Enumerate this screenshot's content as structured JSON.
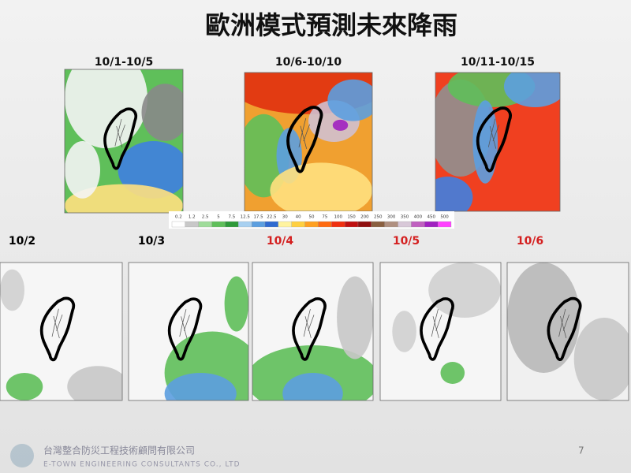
{
  "header": {
    "title": "歐洲模式預測未來降雨"
  },
  "periods": [
    {
      "label": "10/1-10/5"
    },
    {
      "label": "10/6-10/10"
    },
    {
      "label": "10/11-10/15"
    }
  ],
  "colorbar": {
    "ticks": [
      0.2,
      1.2,
      2.5,
      5,
      7.5,
      12.5,
      17.5,
      22.5,
      30,
      40,
      50,
      75,
      100,
      150,
      200,
      250,
      300,
      350,
      400,
      450,
      500
    ],
    "colors": [
      "#ffffff",
      "#c8c8c8",
      "#9fdc9a",
      "#5fbf5a",
      "#2e9a3a",
      "#a8d0f0",
      "#5c9fe0",
      "#2f6ad0",
      "#fff3a0",
      "#ffd040",
      "#ffa020",
      "#ff6a10",
      "#f03010",
      "#c01010",
      "#901010",
      "#8a6040",
      "#b09080",
      "#d8c8d8",
      "#c060c0",
      "#a020c0",
      "#ff40ff"
    ]
  },
  "days": [
    {
      "label": "10/2",
      "color": "#000000"
    },
    {
      "label": "10/3",
      "color": "#000000"
    },
    {
      "label": "10/4",
      "color": "#d42020"
    },
    {
      "label": "10/5",
      "color": "#d42020"
    },
    {
      "label": "10/6",
      "color": "#d42020"
    }
  ],
  "footer": {
    "company": "台灣整合防災工程技術顧問有限公司",
    "company_en": "E-TOWN ENGINEERING CONSULTANTS CO., LTD",
    "page": "7"
  }
}
